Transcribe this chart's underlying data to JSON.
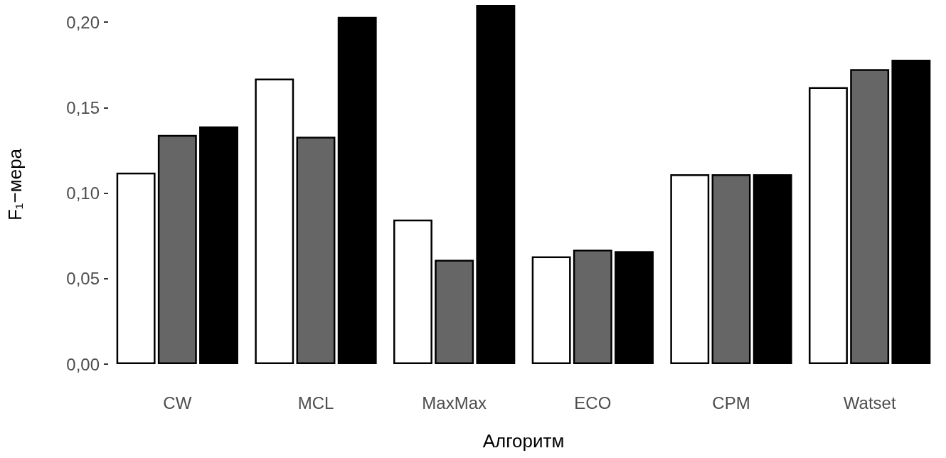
{
  "chart_data": {
    "type": "bar",
    "xlabel": "Алгоритм",
    "ylabel": "F₁−мера",
    "categories": [
      "CW",
      "MCL",
      "MaxMax",
      "ECO",
      "CPM",
      "Watset"
    ],
    "series": [
      {
        "color": "#ffffff",
        "values": [
          0.112,
          0.167,
          0.0845,
          0.063,
          0.111,
          0.162
        ]
      },
      {
        "color": "#666666",
        "values": [
          0.134,
          0.133,
          0.061,
          0.067,
          0.111,
          0.1725
        ]
      },
      {
        "color": "#000000",
        "values": [
          0.139,
          0.203,
          0.21,
          0.066,
          0.111,
          0.178
        ]
      }
    ],
    "yticks": [
      {
        "value": 0,
        "label": "0,00"
      },
      {
        "value": 0.05,
        "label": "0,05"
      },
      {
        "value": 0.1,
        "label": "0,10"
      },
      {
        "value": 0.15,
        "label": "0,15"
      },
      {
        "value": 0.2,
        "label": "0,20"
      }
    ],
    "ylim": [
      0,
      0.21
    ],
    "grid": false
  }
}
